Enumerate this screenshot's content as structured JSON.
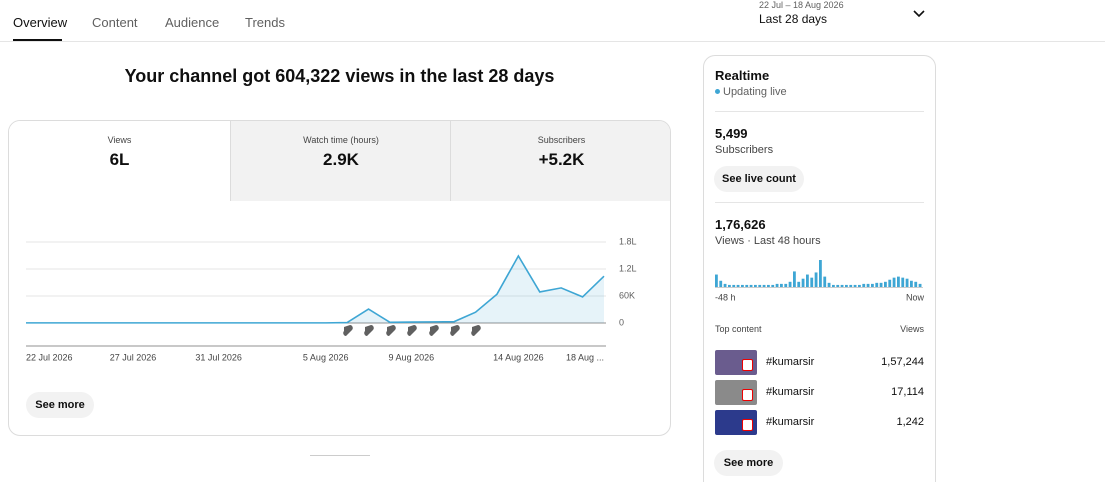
{
  "tabs": [
    "Overview",
    "Content",
    "Audience",
    "Trends"
  ],
  "date_range": {
    "dates": "22 Jul – 18 Aug 2026",
    "label": "Last 28 days"
  },
  "headline": "Your channel got 604,322 views in the last 28 days",
  "metric_cards": [
    {
      "label": "Views",
      "value": "6L"
    },
    {
      "label": "Watch time (hours)",
      "value": "2.9K"
    },
    {
      "label": "Subscribers",
      "value": "+5.2K"
    }
  ],
  "chart_data": {
    "type": "line",
    "color": "#3ea6d4",
    "categories": [
      "22 Jul 2026",
      null,
      null,
      null,
      null,
      "27 Jul 2026",
      null,
      null,
      null,
      "31 Jul 2026",
      null,
      null,
      null,
      null,
      "5 Aug 2026",
      null,
      null,
      null,
      "9 Aug 2026",
      null,
      null,
      null,
      null,
      "14 Aug 2026",
      null,
      null,
      null,
      "18 Aug ..."
    ],
    "values": [
      300,
      300,
      300,
      300,
      300,
      300,
      300,
      300,
      300,
      300,
      300,
      300,
      300,
      300,
      300,
      1000,
      31000,
      1500,
      2000,
      2500,
      3000,
      24000,
      64000,
      149000,
      69000,
      78000,
      58000,
      104000
    ],
    "ylim": [
      0,
      180000
    ],
    "yticks": [
      0,
      {
        "value": 60000,
        "label": "60K"
      },
      {
        "value": 120000,
        "label": "1.2L"
      },
      {
        "value": 180000,
        "label": "1.8L"
      }
    ],
    "grid": true
  },
  "see_more": "See more",
  "realtime": {
    "title": "Realtime",
    "status": "Updating live",
    "subscribers": {
      "value": "5,499",
      "label": "Subscribers"
    },
    "live_button": "See live count",
    "views": {
      "value": "1,76,626",
      "label": "Views · Last 48 hours"
    },
    "chart_data": {
      "type": "bar",
      "color": "#3ea6d4",
      "values": [
        8400,
        4200,
        2100,
        1400,
        1400,
        1400,
        1400,
        1400,
        1400,
        1400,
        1400,
        1400,
        1400,
        1400,
        2100,
        2100,
        2100,
        3500,
        10500,
        3500,
        5600,
        8400,
        6300,
        9800,
        18200,
        7000,
        2800,
        1400,
        1400,
        1400,
        1400,
        1400,
        1400,
        1400,
        2100,
        2100,
        2100,
        2800,
        2800,
        3500,
        4900,
        6300,
        7000,
        6300,
        5600,
        4200,
        3500,
        2100
      ],
      "x_start": "-48 h",
      "x_end": "Now"
    },
    "top_content": {
      "title": "Top content",
      "column": "Views",
      "items": [
        {
          "title": "#kumarsir",
          "views": "1,57,244"
        },
        {
          "title": "#kumarsir",
          "views": "17,114"
        },
        {
          "title": "#kumarsir",
          "views": "1,242"
        }
      ]
    },
    "see_more": "See more"
  }
}
